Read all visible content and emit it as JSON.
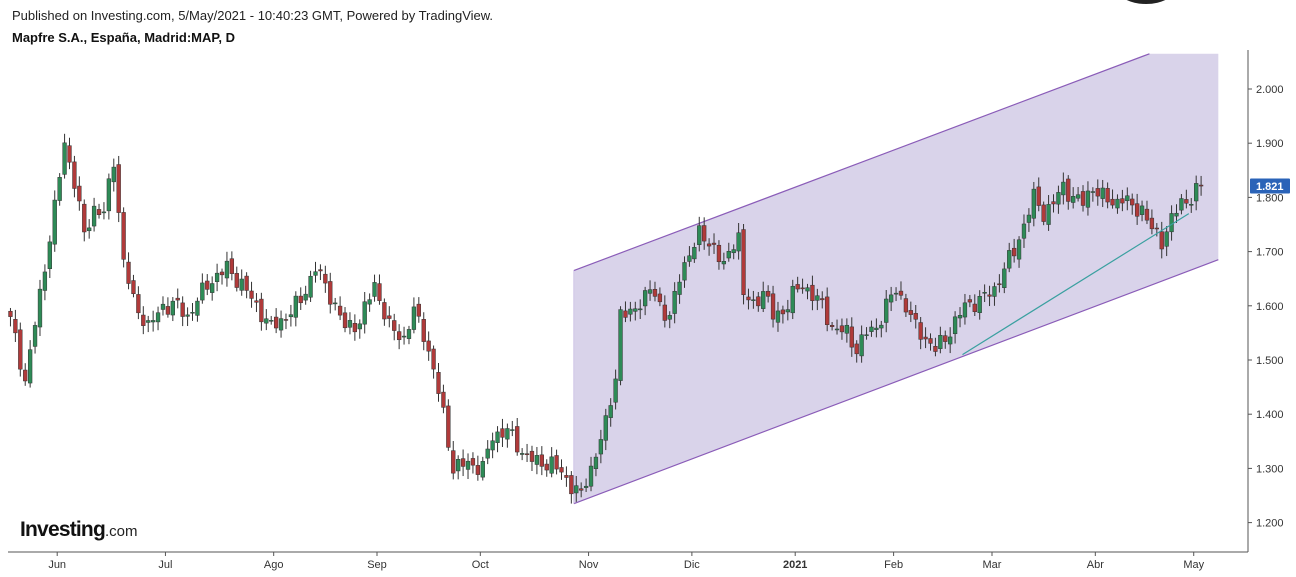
{
  "header": {
    "published": "Published on Investing.com, 5/May/2021 - 10:40:23 GMT, Powered by TradingView.",
    "symbol": "Mapfre S.A., España, Madrid:MAP, D"
  },
  "logo": {
    "main": "Investing",
    "suffix": ".com"
  },
  "chart_data": {
    "type": "candlestick",
    "ylim": [
      1.15,
      2.07
    ],
    "y_ticks": [
      "2.000",
      "1.900",
      "1.800",
      "1.700",
      "1.600",
      "1.500",
      "1.400",
      "1.300",
      "1.200"
    ],
    "x_ticks": [
      {
        "label": "Jun",
        "bar": 10,
        "bold": false
      },
      {
        "label": "Jul",
        "bar": 32,
        "bold": false
      },
      {
        "label": "Ago",
        "bar": 54,
        "bold": false
      },
      {
        "label": "Sep",
        "bar": 75,
        "bold": false
      },
      {
        "label": "Oct",
        "bar": 96,
        "bold": false
      },
      {
        "label": "Nov",
        "bar": 118,
        "bold": false
      },
      {
        "label": "Dic",
        "bar": 139,
        "bold": false
      },
      {
        "label": "2021",
        "bar": 160,
        "bold": true
      },
      {
        "label": "Feb",
        "bar": 180,
        "bold": false
      },
      {
        "label": "Mar",
        "bar": 200,
        "bold": false
      },
      {
        "label": "Abr",
        "bar": 221,
        "bold": false
      },
      {
        "label": "May",
        "bar": 241,
        "bold": false
      }
    ],
    "current_price": "1.821",
    "up_color": "#2e8b57",
    "down_color": "#b03a3a",
    "channel": {
      "fill": "#d9d3ea",
      "line_color": "#8a5cb8",
      "upper": [
        [
          115,
          1.665
        ],
        [
          232,
          2.065
        ]
      ],
      "lower": [
        [
          115,
          1.235
        ],
        [
          246,
          1.685
        ]
      ],
      "start_bar": 115,
      "right_bar": 246
    },
    "trendline": {
      "color": "#3aa0a0",
      "points": [
        [
          194,
          1.51
        ],
        [
          240,
          1.77
        ]
      ]
    },
    "keypoints": [
      [
        0,
        1.58
      ],
      [
        3,
        1.46
      ],
      [
        6,
        1.62
      ],
      [
        9,
        1.78
      ],
      [
        11,
        1.9
      ],
      [
        13,
        1.83
      ],
      [
        15,
        1.73
      ],
      [
        17,
        1.78
      ],
      [
        19,
        1.77
      ],
      [
        21,
        1.87
      ],
      [
        23,
        1.68
      ],
      [
        25,
        1.61
      ],
      [
        28,
        1.56
      ],
      [
        31,
        1.6
      ],
      [
        34,
        1.6
      ],
      [
        36,
        1.58
      ],
      [
        40,
        1.64
      ],
      [
        44,
        1.67
      ],
      [
        47,
        1.64
      ],
      [
        50,
        1.6
      ],
      [
        53,
        1.56
      ],
      [
        56,
        1.58
      ],
      [
        59,
        1.61
      ],
      [
        62,
        1.67
      ],
      [
        65,
        1.62
      ],
      [
        68,
        1.56
      ],
      [
        71,
        1.57
      ],
      [
        74,
        1.64
      ],
      [
        77,
        1.56
      ],
      [
        80,
        1.54
      ],
      [
        82,
        1.59
      ],
      [
        84,
        1.55
      ],
      [
        86,
        1.48
      ],
      [
        88,
        1.4
      ],
      [
        90,
        1.3
      ],
      [
        93,
        1.31
      ],
      [
        96,
        1.3
      ],
      [
        98,
        1.36
      ],
      [
        101,
        1.37
      ],
      [
        104,
        1.33
      ],
      [
        107,
        1.31
      ],
      [
        110,
        1.31
      ],
      [
        113,
        1.28
      ],
      [
        115,
        1.26
      ],
      [
        116,
        1.25
      ],
      [
        118,
        1.3
      ],
      [
        119,
        1.33
      ],
      [
        121,
        1.38
      ],
      [
        123,
        1.47
      ],
      [
        124,
        1.59
      ],
      [
        126,
        1.58
      ],
      [
        128,
        1.61
      ],
      [
        130,
        1.63
      ],
      [
        132,
        1.6
      ],
      [
        134,
        1.58
      ],
      [
        136,
        1.65
      ],
      [
        138,
        1.7
      ],
      [
        140,
        1.73
      ],
      [
        143,
        1.71
      ],
      [
        145,
        1.67
      ],
      [
        147,
        1.72
      ],
      [
        148,
        1.73
      ],
      [
        149,
        1.62
      ],
      [
        151,
        1.6
      ],
      [
        153,
        1.63
      ],
      [
        155,
        1.58
      ],
      [
        157,
        1.59
      ],
      [
        159,
        1.62
      ],
      [
        161,
        1.64
      ],
      [
        163,
        1.62
      ],
      [
        165,
        1.6
      ],
      [
        167,
        1.56
      ],
      [
        170,
        1.55
      ],
      [
        172,
        1.52
      ],
      [
        174,
        1.55
      ],
      [
        176,
        1.56
      ],
      [
        178,
        1.6
      ],
      [
        180,
        1.63
      ],
      [
        182,
        1.6
      ],
      [
        184,
        1.56
      ],
      [
        186,
        1.54
      ],
      [
        188,
        1.52
      ],
      [
        190,
        1.54
      ],
      [
        192,
        1.57
      ],
      [
        194,
        1.6
      ],
      [
        197,
        1.61
      ],
      [
        200,
        1.63
      ],
      [
        202,
        1.67
      ],
      [
        204,
        1.7
      ],
      [
        206,
        1.75
      ],
      [
        208,
        1.8
      ],
      [
        210,
        1.77
      ],
      [
        212,
        1.79
      ],
      [
        214,
        1.82
      ],
      [
        216,
        1.8
      ],
      [
        218,
        1.79
      ],
      [
        220,
        1.82
      ],
      [
        222,
        1.8
      ],
      [
        224,
        1.79
      ],
      [
        226,
        1.8
      ],
      [
        228,
        1.78
      ],
      [
        230,
        1.78
      ],
      [
        232,
        1.74
      ],
      [
        234,
        1.72
      ],
      [
        236,
        1.76
      ],
      [
        238,
        1.79
      ],
      [
        240,
        1.8
      ],
      [
        242,
        1.821
      ]
    ]
  }
}
